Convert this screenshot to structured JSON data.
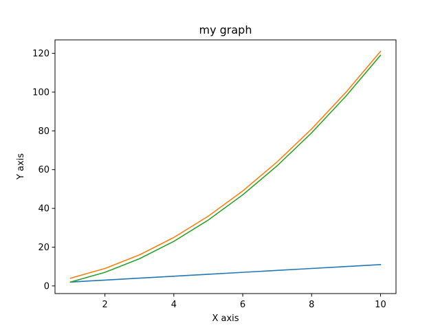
{
  "chart_data": {
    "type": "line",
    "title": "my graph",
    "xlabel": "X axis",
    "ylabel": "Y axis",
    "xlim": [
      0.55,
      10.45
    ],
    "ylim": [
      -3.95,
      126.95
    ],
    "xticks": [
      2,
      4,
      6,
      8,
      10
    ],
    "yticks": [
      0,
      20,
      40,
      60,
      80,
      100,
      120
    ],
    "grid": false,
    "x": [
      1,
      2,
      3,
      4,
      5,
      6,
      7,
      8,
      9,
      10
    ],
    "series": [
      {
        "color": "#1f77b4",
        "values": [
          2,
          3,
          4,
          5,
          6,
          7,
          8,
          9,
          10,
          11
        ]
      },
      {
        "color": "#ff7f0e",
        "values": [
          4,
          9,
          16,
          25,
          36,
          49,
          64,
          81,
          100,
          121
        ]
      },
      {
        "color": "#2ca02c",
        "values": [
          2,
          7,
          14,
          23,
          34,
          47,
          62,
          79,
          98,
          119
        ]
      }
    ]
  }
}
